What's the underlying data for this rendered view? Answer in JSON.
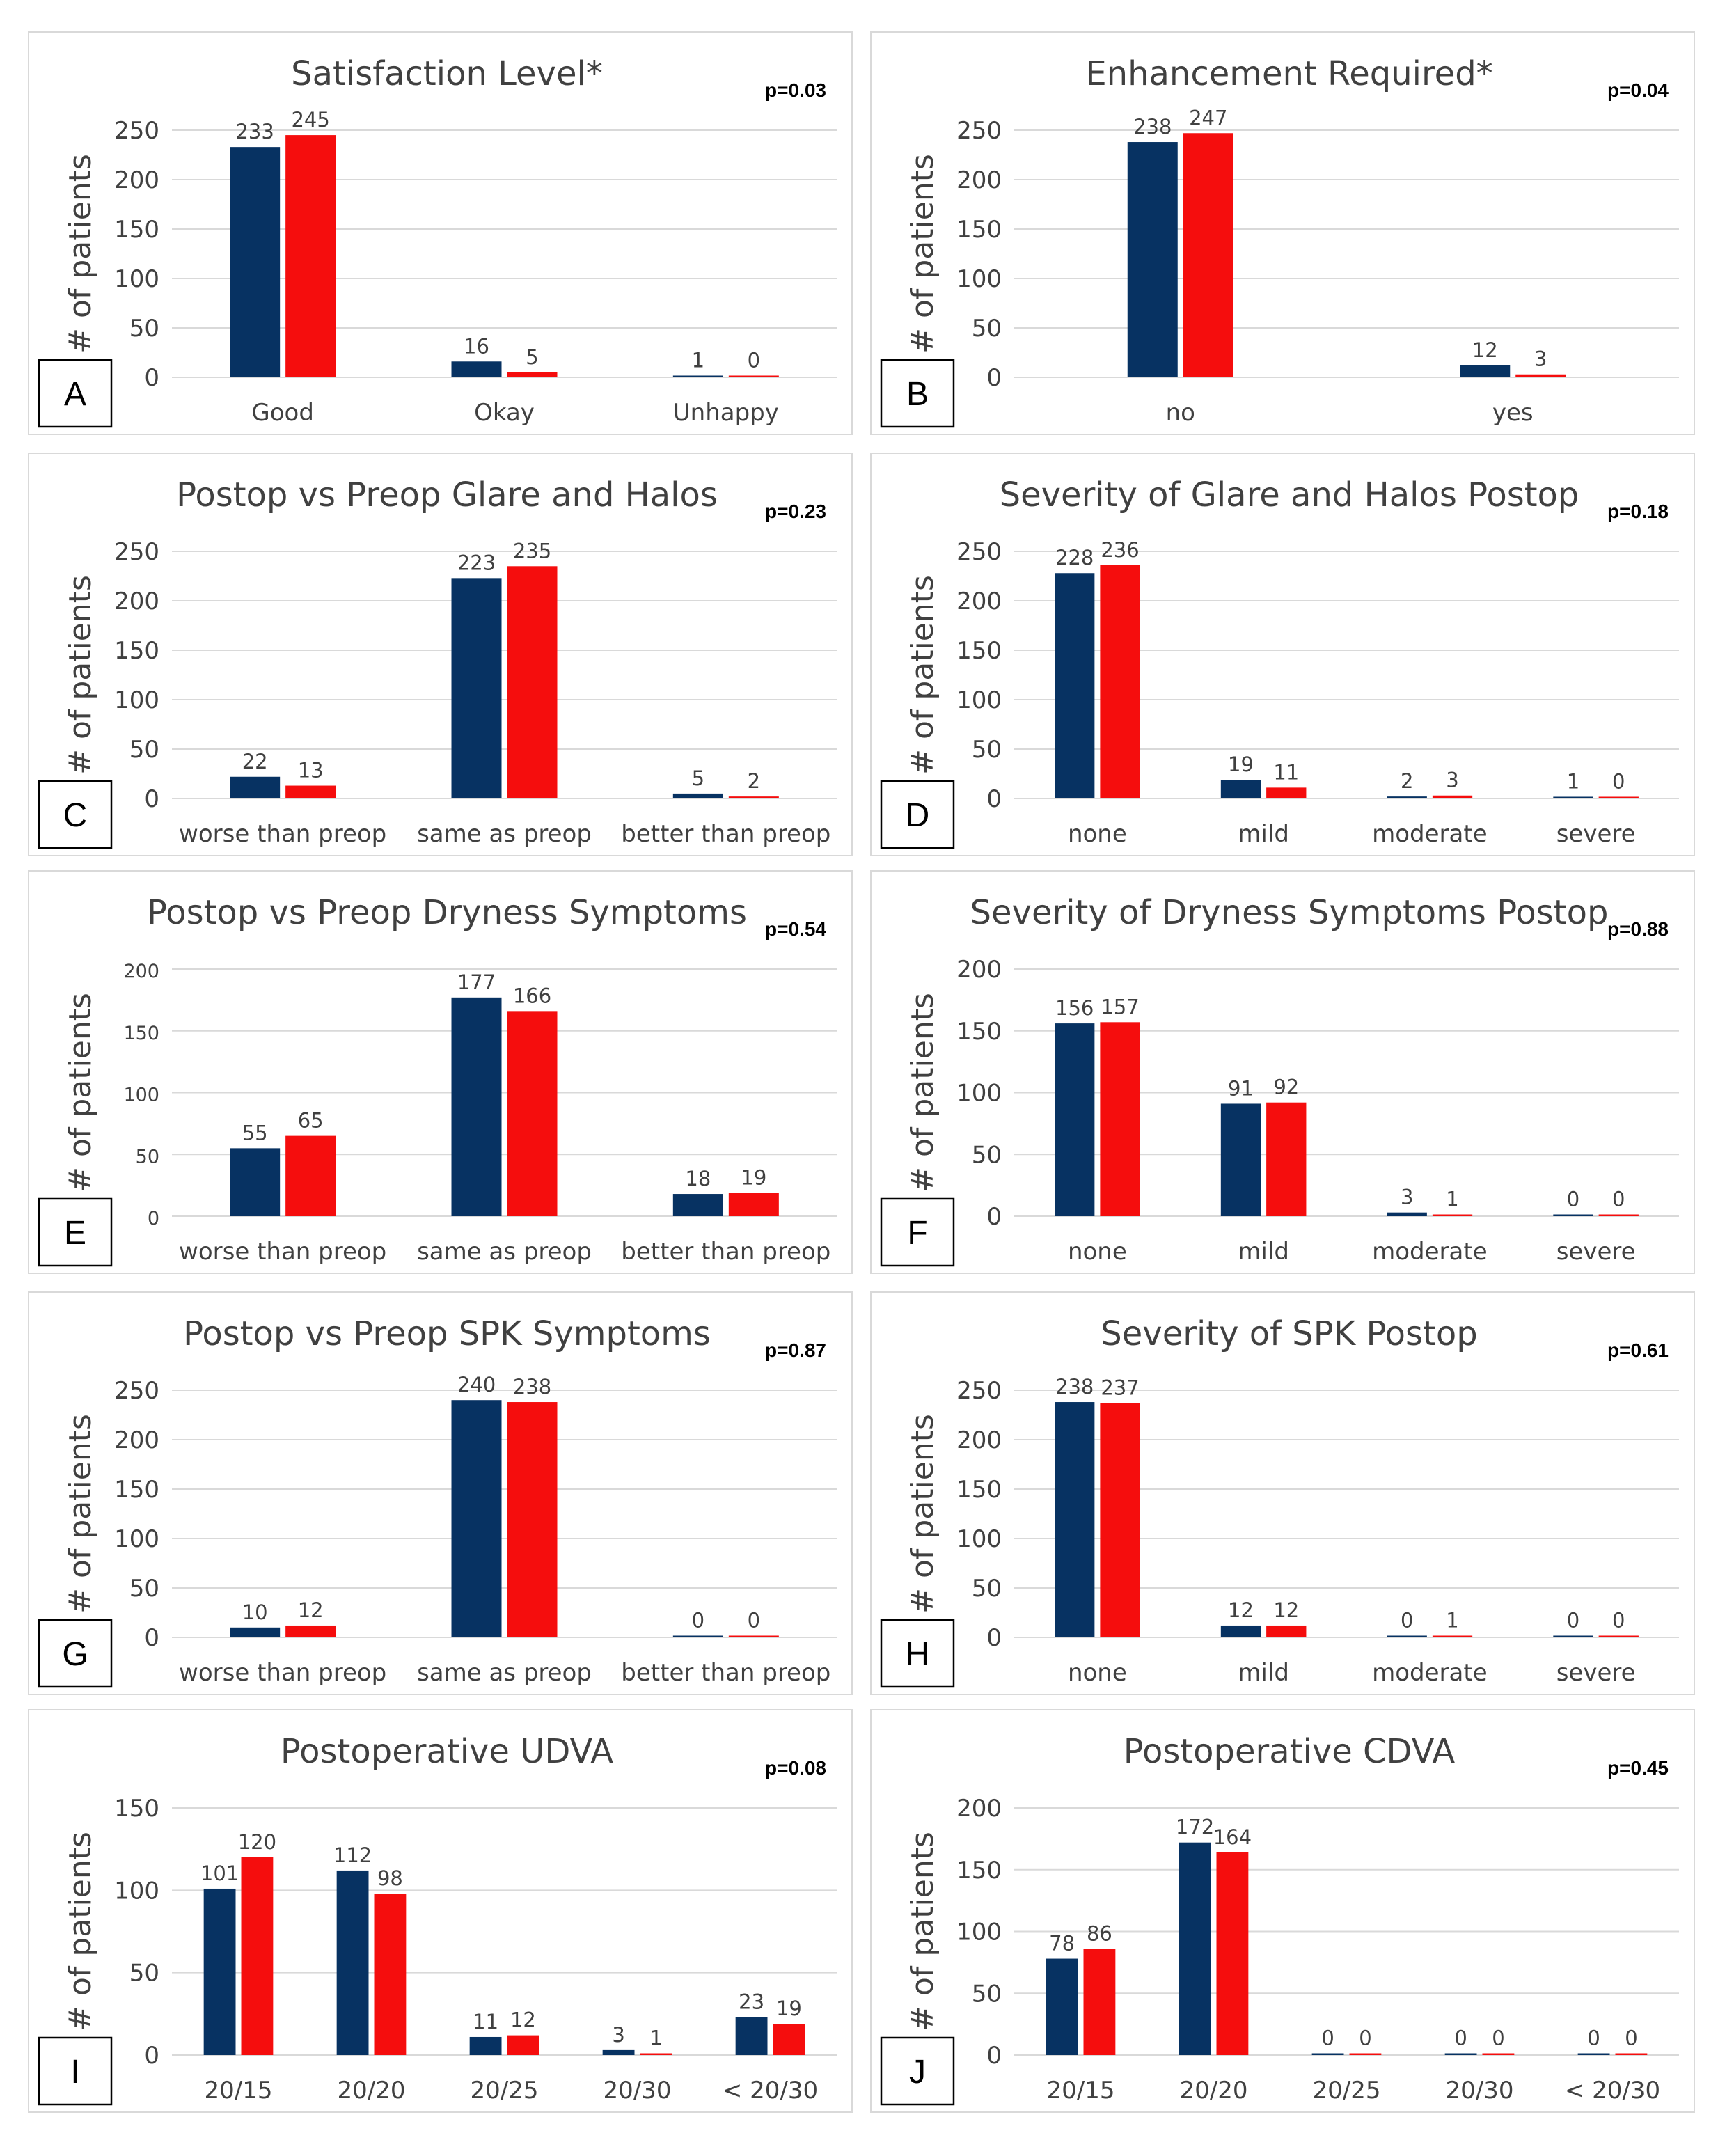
{
  "colors": {
    "series1": "#073262",
    "series2": "#f50d0d",
    "grid": "#d9d9d9",
    "text": "#404040"
  },
  "chart_data": [
    {
      "panel": "A",
      "type": "bar",
      "title": "Satisfaction Level*",
      "p_value": "p=0.03",
      "ylabel": "# of patients",
      "ylim": [
        0,
        250
      ],
      "yticks": [
        0,
        50,
        100,
        150,
        200,
        250
      ],
      "categories": [
        "Good",
        "Okay",
        "Unhappy"
      ],
      "series": [
        {
          "name": "series 1",
          "values": [
            233,
            16,
            1
          ]
        },
        {
          "name": "series 2",
          "values": [
            245,
            5,
            0
          ]
        }
      ]
    },
    {
      "panel": "B",
      "type": "bar",
      "title": "Enhancement Required*",
      "p_value": "p=0.04",
      "ylabel": "# of patients",
      "ylim": [
        0,
        250
      ],
      "yticks": [
        0,
        50,
        100,
        150,
        200,
        250
      ],
      "categories": [
        "no",
        "yes"
      ],
      "series": [
        {
          "name": "series 1",
          "values": [
            238,
            12
          ]
        },
        {
          "name": "series 2",
          "values": [
            247,
            3
          ]
        }
      ]
    },
    {
      "panel": "C",
      "type": "bar",
      "title": "Postop vs Preop Glare and Halos",
      "p_value": "p=0.23",
      "ylabel": "# of patients",
      "ylim": [
        0,
        250
      ],
      "yticks": [
        0,
        50,
        100,
        150,
        200,
        250
      ],
      "categories": [
        "worse than preop",
        "same as preop",
        "better than preop"
      ],
      "series": [
        {
          "name": "series 1",
          "values": [
            22,
            223,
            5
          ]
        },
        {
          "name": "series 2",
          "values": [
            13,
            235,
            2
          ]
        }
      ]
    },
    {
      "panel": "D",
      "type": "bar",
      "title": "Severity of Glare and Halos Postop",
      "p_value": "p=0.18",
      "ylabel": "# of patients",
      "ylim": [
        0,
        250
      ],
      "yticks": [
        0,
        50,
        100,
        150,
        200,
        250
      ],
      "categories": [
        "none",
        "mild",
        "moderate",
        "severe"
      ],
      "series": [
        {
          "name": "series 1",
          "values": [
            228,
            19,
            2,
            1
          ]
        },
        {
          "name": "series 2",
          "values": [
            236,
            11,
            3,
            0
          ]
        }
      ]
    },
    {
      "panel": "E",
      "type": "bar",
      "title": "Postop vs Preop Dryness Symptoms",
      "p_value": "p=0.54",
      "ylabel": "# of patients",
      "ylim": [
        0,
        200
      ],
      "yticks": [
        0,
        50,
        100,
        150,
        200
      ],
      "small_ticks": true,
      "categories": [
        "worse than preop",
        "same as preop",
        "better than preop"
      ],
      "series": [
        {
          "name": "series 1",
          "values": [
            55,
            177,
            18
          ]
        },
        {
          "name": "series 2",
          "values": [
            65,
            166,
            19
          ]
        }
      ]
    },
    {
      "panel": "F",
      "type": "bar",
      "title": "Severity of Dryness Symptoms Postop",
      "p_value": "p=0.88",
      "ylabel": "# of patients",
      "ylim": [
        0,
        200
      ],
      "yticks": [
        0,
        50,
        100,
        150,
        200
      ],
      "categories": [
        "none",
        "mild",
        "moderate",
        "severe"
      ],
      "series": [
        {
          "name": "series 1",
          "values": [
            156,
            91,
            3,
            0
          ]
        },
        {
          "name": "series 2",
          "values": [
            157,
            92,
            1,
            0
          ]
        }
      ]
    },
    {
      "panel": "G",
      "type": "bar",
      "title": "Postop vs Preop SPK Symptoms",
      "p_value": "p=0.87",
      "ylabel": "# of patients",
      "ylim": [
        0,
        250
      ],
      "yticks": [
        0,
        50,
        100,
        150,
        200,
        250
      ],
      "categories": [
        "worse than preop",
        "same as preop",
        "better than preop"
      ],
      "series": [
        {
          "name": "series 1",
          "values": [
            10,
            240,
            0
          ]
        },
        {
          "name": "series 2",
          "values": [
            12,
            238,
            0
          ]
        }
      ]
    },
    {
      "panel": "H",
      "type": "bar",
      "title": "Severity of SPK Postop",
      "p_value": "p=0.61",
      "ylabel": "# of patients",
      "ylim": [
        0,
        250
      ],
      "yticks": [
        0,
        50,
        100,
        150,
        200,
        250
      ],
      "categories": [
        "none",
        "mild",
        "moderate",
        "severe"
      ],
      "series": [
        {
          "name": "series 1",
          "values": [
            238,
            12,
            0,
            0
          ]
        },
        {
          "name": "series 2",
          "values": [
            237,
            12,
            1,
            0
          ]
        }
      ]
    },
    {
      "panel": "I",
      "type": "bar",
      "title": "Postoperative UDVA",
      "p_value": "p=0.08",
      "ylabel": "# of patients",
      "ylim": [
        0,
        150
      ],
      "yticks": [
        0,
        50,
        100,
        150
      ],
      "categories": [
        "20/15",
        "20/20",
        "20/25",
        "20/30",
        "< 20/30"
      ],
      "series": [
        {
          "name": "series 1",
          "values": [
            101,
            112,
            11,
            3,
            23
          ]
        },
        {
          "name": "series 2",
          "values": [
            120,
            98,
            12,
            1,
            19
          ]
        }
      ]
    },
    {
      "panel": "J",
      "type": "bar",
      "title": "Postoperative CDVA",
      "p_value": "p=0.45",
      "ylabel": "# of patients",
      "ylim": [
        0,
        200
      ],
      "yticks": [
        0,
        50,
        100,
        150,
        200
      ],
      "categories": [
        "20/15",
        "20/20",
        "20/25",
        "20/30",
        "< 20/30"
      ],
      "series": [
        {
          "name": "series 1",
          "values": [
            78,
            172,
            0,
            0,
            0
          ]
        },
        {
          "name": "series 2",
          "values": [
            86,
            164,
            0,
            0,
            0
          ]
        }
      ]
    }
  ]
}
